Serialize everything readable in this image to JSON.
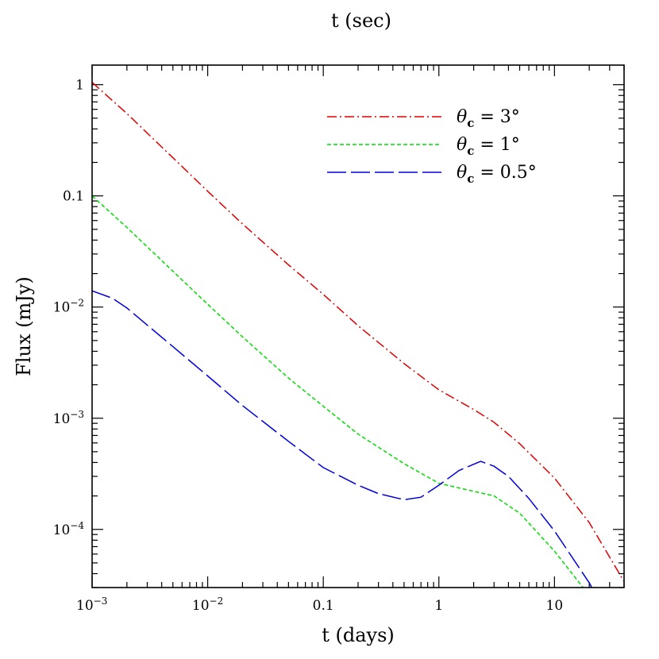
{
  "chart_data": {
    "type": "line",
    "title": "",
    "xlabel": "t (days)",
    "x2label": "t (sec)",
    "ylabel": "Flux (mJy)",
    "xscale": "log",
    "yscale": "log",
    "xlim": [
      0.001,
      40
    ],
    "ylim": [
      3e-05,
      1.5
    ],
    "grid": false,
    "legend_position": "top-right",
    "x_ticks": [
      {
        "value": 0.001,
        "base": "10",
        "exp": "−3",
        "text": ""
      },
      {
        "value": 0.01,
        "base": "10",
        "exp": "−2",
        "text": ""
      },
      {
        "value": 0.1,
        "base": "",
        "exp": "",
        "text": "0.1"
      },
      {
        "value": 1,
        "base": "",
        "exp": "",
        "text": "1"
      },
      {
        "value": 10,
        "base": "",
        "exp": "",
        "text": "10"
      }
    ],
    "y_ticks": [
      {
        "value": 1,
        "base": "",
        "exp": "",
        "text": "1"
      },
      {
        "value": 0.1,
        "base": "",
        "exp": "",
        "text": "0.1"
      },
      {
        "value": 0.01,
        "base": "10",
        "exp": "−2",
        "text": ""
      },
      {
        "value": 0.001,
        "base": "10",
        "exp": "−3",
        "text": ""
      },
      {
        "value": 0.0001,
        "base": "10",
        "exp": "−4",
        "text": ""
      }
    ],
    "series": [
      {
        "legend_symbol": "θ",
        "legend_sub": "c",
        "legend_value": "= 3°",
        "color": "#e00000",
        "dash": "12 4 2 4",
        "x": [
          0.001,
          0.002,
          0.005,
          0.01,
          0.02,
          0.05,
          0.1,
          0.2,
          0.5,
          1.0,
          2.0,
          3.0,
          5.0,
          10,
          20,
          40
        ],
        "y": [
          1.05,
          0.55,
          0.22,
          0.11,
          0.056,
          0.024,
          0.013,
          0.0068,
          0.0031,
          0.0018,
          0.0012,
          0.00092,
          0.00059,
          0.00029,
          0.000115,
          3.4e-05
        ]
      },
      {
        "legend_symbol": "θ",
        "legend_sub": "c",
        "legend_value": "= 1°",
        "color": "#00dd00",
        "dash": "5 3",
        "x": [
          0.001,
          0.002,
          0.005,
          0.01,
          0.02,
          0.05,
          0.1,
          0.2,
          0.5,
          1.0,
          2.0,
          3.0,
          5.0,
          10,
          20,
          40
        ],
        "y": [
          0.1,
          0.052,
          0.021,
          0.0106,
          0.0054,
          0.0023,
          0.00128,
          0.00072,
          0.00039,
          0.00026,
          0.00022,
          0.0002,
          0.00014,
          6.38e-05,
          2.55e-05,
          7.5e-06
        ]
      },
      {
        "legend_symbol": "θ",
        "legend_sub": "c",
        "legend_value": "= 0.5°",
        "color": "#0000dd",
        "dash": "24 6",
        "x": [
          0.001,
          0.0015,
          0.002,
          0.005,
          0.01,
          0.02,
          0.05,
          0.1,
          0.2,
          0.3,
          0.5,
          0.7,
          1.0,
          1.5,
          2.3,
          3.0,
          4.0,
          6.0,
          10,
          20,
          40
        ],
        "y": [
          0.014,
          0.012,
          0.0098,
          0.0044,
          0.0024,
          0.0013,
          0.00062,
          0.00036,
          0.00025,
          0.00021,
          0.000185,
          0.000195,
          0.00025,
          0.00034,
          0.00041,
          0.00037,
          0.0003,
          0.00019,
          9.7e-05,
          3.3e-05,
          9.08e-06
        ]
      }
    ]
  }
}
